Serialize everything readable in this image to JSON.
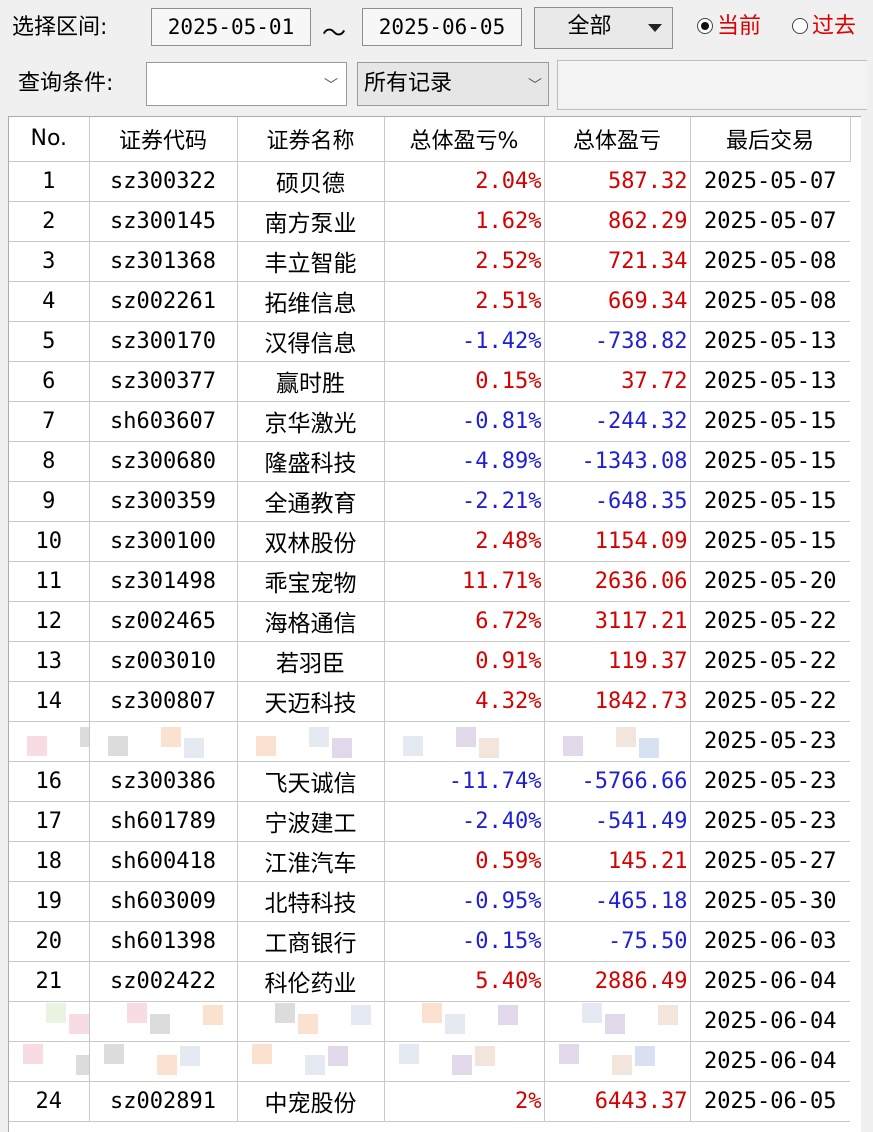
{
  "toolbar": {
    "range_label": "选择区间:",
    "start_date": "2025-05-01",
    "separator": "～",
    "end_date": "2025-06-05",
    "scope_value": "全部",
    "radio_current": "当前",
    "radio_past": "过去",
    "condition_label": "查询条件:",
    "condition_value": "",
    "records_value": "所有记录"
  },
  "table": {
    "headers": [
      "No.",
      "证券代码",
      "证券名称",
      "总体盈亏%",
      "总体盈亏",
      "最后交易"
    ],
    "rows": [
      {
        "no": "1",
        "code": "sz300322",
        "name": "硕贝德",
        "pct": "2.04%",
        "pnl": "587.32",
        "date": "2025-05-07",
        "dir": "pos"
      },
      {
        "no": "2",
        "code": "sz300145",
        "name": "南方泵业",
        "pct": "1.62%",
        "pnl": "862.29",
        "date": "2025-05-07",
        "dir": "pos"
      },
      {
        "no": "3",
        "code": "sz301368",
        "name": "丰立智能",
        "pct": "2.52%",
        "pnl": "721.34",
        "date": "2025-05-08",
        "dir": "pos"
      },
      {
        "no": "4",
        "code": "sz002261",
        "name": "拓维信息",
        "pct": "2.51%",
        "pnl": "669.34",
        "date": "2025-05-08",
        "dir": "pos"
      },
      {
        "no": "5",
        "code": "sz300170",
        "name": "汉得信息",
        "pct": "-1.42%",
        "pnl": "-738.82",
        "date": "2025-05-13",
        "dir": "neg"
      },
      {
        "no": "6",
        "code": "sz300377",
        "name": "赢时胜",
        "pct": "0.15%",
        "pnl": "37.72",
        "date": "2025-05-13",
        "dir": "pos"
      },
      {
        "no": "7",
        "code": "sh603607",
        "name": "京华激光",
        "pct": "-0.81%",
        "pnl": "-244.32",
        "date": "2025-05-15",
        "dir": "neg"
      },
      {
        "no": "8",
        "code": "sz300680",
        "name": "隆盛科技",
        "pct": "-4.89%",
        "pnl": "-1343.08",
        "date": "2025-05-15",
        "dir": "neg"
      },
      {
        "no": "9",
        "code": "sz300359",
        "name": "全通教育",
        "pct": "-2.21%",
        "pnl": "-648.35",
        "date": "2025-05-15",
        "dir": "neg"
      },
      {
        "no": "10",
        "code": "sz300100",
        "name": "双林股份",
        "pct": "2.48%",
        "pnl": "1154.09",
        "date": "2025-05-15",
        "dir": "pos"
      },
      {
        "no": "11",
        "code": "sz301498",
        "name": "乖宝宠物",
        "pct": "11.71%",
        "pnl": "2636.06",
        "date": "2025-05-20",
        "dir": "pos"
      },
      {
        "no": "12",
        "code": "sz002465",
        "name": "海格通信",
        "pct": "6.72%",
        "pnl": "3117.21",
        "date": "2025-05-22",
        "dir": "pos"
      },
      {
        "no": "13",
        "code": "sz003010",
        "name": "若羽臣",
        "pct": "0.91%",
        "pnl": "119.37",
        "date": "2025-05-22",
        "dir": "pos"
      },
      {
        "no": "14",
        "code": "sz300807",
        "name": "天迈科技",
        "pct": "4.32%",
        "pnl": "1842.73",
        "date": "2025-05-22",
        "dir": "pos"
      },
      {
        "no": "",
        "code": "",
        "name": "",
        "pct": "",
        "pnl": "",
        "date": "2025-05-23",
        "dir": "pos",
        "masked": true
      },
      {
        "no": "16",
        "code": "sz300386",
        "name": "飞天诚信",
        "pct": "-11.74%",
        "pnl": "-5766.66",
        "date": "2025-05-23",
        "dir": "neg"
      },
      {
        "no": "17",
        "code": "sh601789",
        "name": "宁波建工",
        "pct": "-2.40%",
        "pnl": "-541.49",
        "date": "2025-05-23",
        "dir": "neg"
      },
      {
        "no": "18",
        "code": "sh600418",
        "name": "江淮汽车",
        "pct": "0.59%",
        "pnl": "145.21",
        "date": "2025-05-27",
        "dir": "pos"
      },
      {
        "no": "19",
        "code": "sh603009",
        "name": "北特科技",
        "pct": "-0.95%",
        "pnl": "-465.18",
        "date": "2025-05-30",
        "dir": "neg"
      },
      {
        "no": "20",
        "code": "sh601398",
        "name": "工商银行",
        "pct": "-0.15%",
        "pnl": "-75.50",
        "date": "2025-06-03",
        "dir": "neg"
      },
      {
        "no": "21",
        "code": "sz002422",
        "name": "科伦药业",
        "pct": "5.40%",
        "pnl": "2886.49",
        "date": "2025-06-04",
        "dir": "pos"
      },
      {
        "no": "",
        "code": "",
        "name": "",
        "pct": "",
        "pnl": "",
        "date": "2025-06-04",
        "dir": "pos",
        "masked": true
      },
      {
        "no": "",
        "code": "",
        "name": "",
        "pct": "",
        "pnl": "",
        "date": "2025-06-04",
        "dir": "pos",
        "masked": true
      },
      {
        "no": "24",
        "code": "sz002891",
        "name": "中宠股份",
        "pct": "2%",
        "pnl": "6443.37",
        "date": "2025-06-05",
        "dir": "pos"
      }
    ]
  },
  "colors": {
    "positive": "#d60000",
    "negative": "#1f1fd6",
    "radio_text": "#e00000"
  }
}
